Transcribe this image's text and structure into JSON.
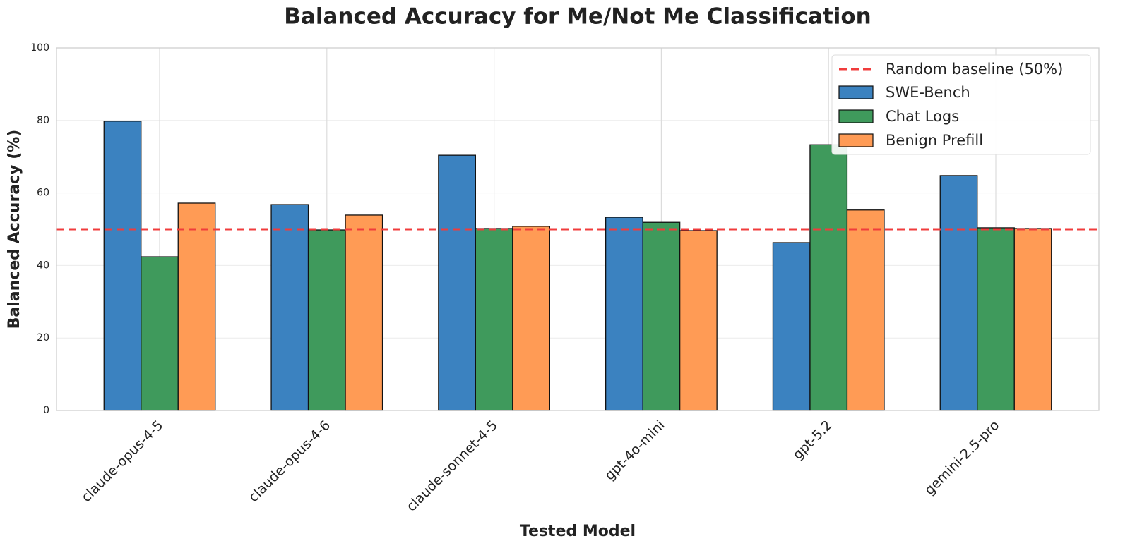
{
  "chart_data": {
    "type": "bar",
    "title": "Balanced Accuracy for Me/Not Me Classification",
    "x_label": "Tested Model",
    "y_label": "Balanced Accuracy (%)",
    "categories": [
      "claude-opus-4-5",
      "claude-opus-4-6",
      "claude-sonnet-4-5",
      "gpt-4o-mini",
      "gpt-5.2",
      "gemini-2.5-pro"
    ],
    "series": [
      {
        "name": "SWE-Bench",
        "color": "#3b82c0",
        "values": [
          79.8,
          56.8,
          70.4,
          53.3,
          46.3,
          64.8
        ]
      },
      {
        "name": "Chat Logs",
        "color": "#3f9a5c",
        "values": [
          42.4,
          49.8,
          50.2,
          51.9,
          73.3,
          50.4
        ]
      },
      {
        "name": "Benign Prefill",
        "color": "#ff9b55",
        "values": [
          57.2,
          53.9,
          50.8,
          49.6,
          55.3,
          50.2
        ]
      }
    ],
    "reference_line": {
      "value": 50,
      "label": "Random baseline (50%)",
      "color": "#f03c3c"
    },
    "ylim": [
      0,
      100
    ],
    "yticks": [
      0,
      20,
      40,
      60,
      80,
      100
    ],
    "grid": true,
    "legend": "upper right"
  }
}
